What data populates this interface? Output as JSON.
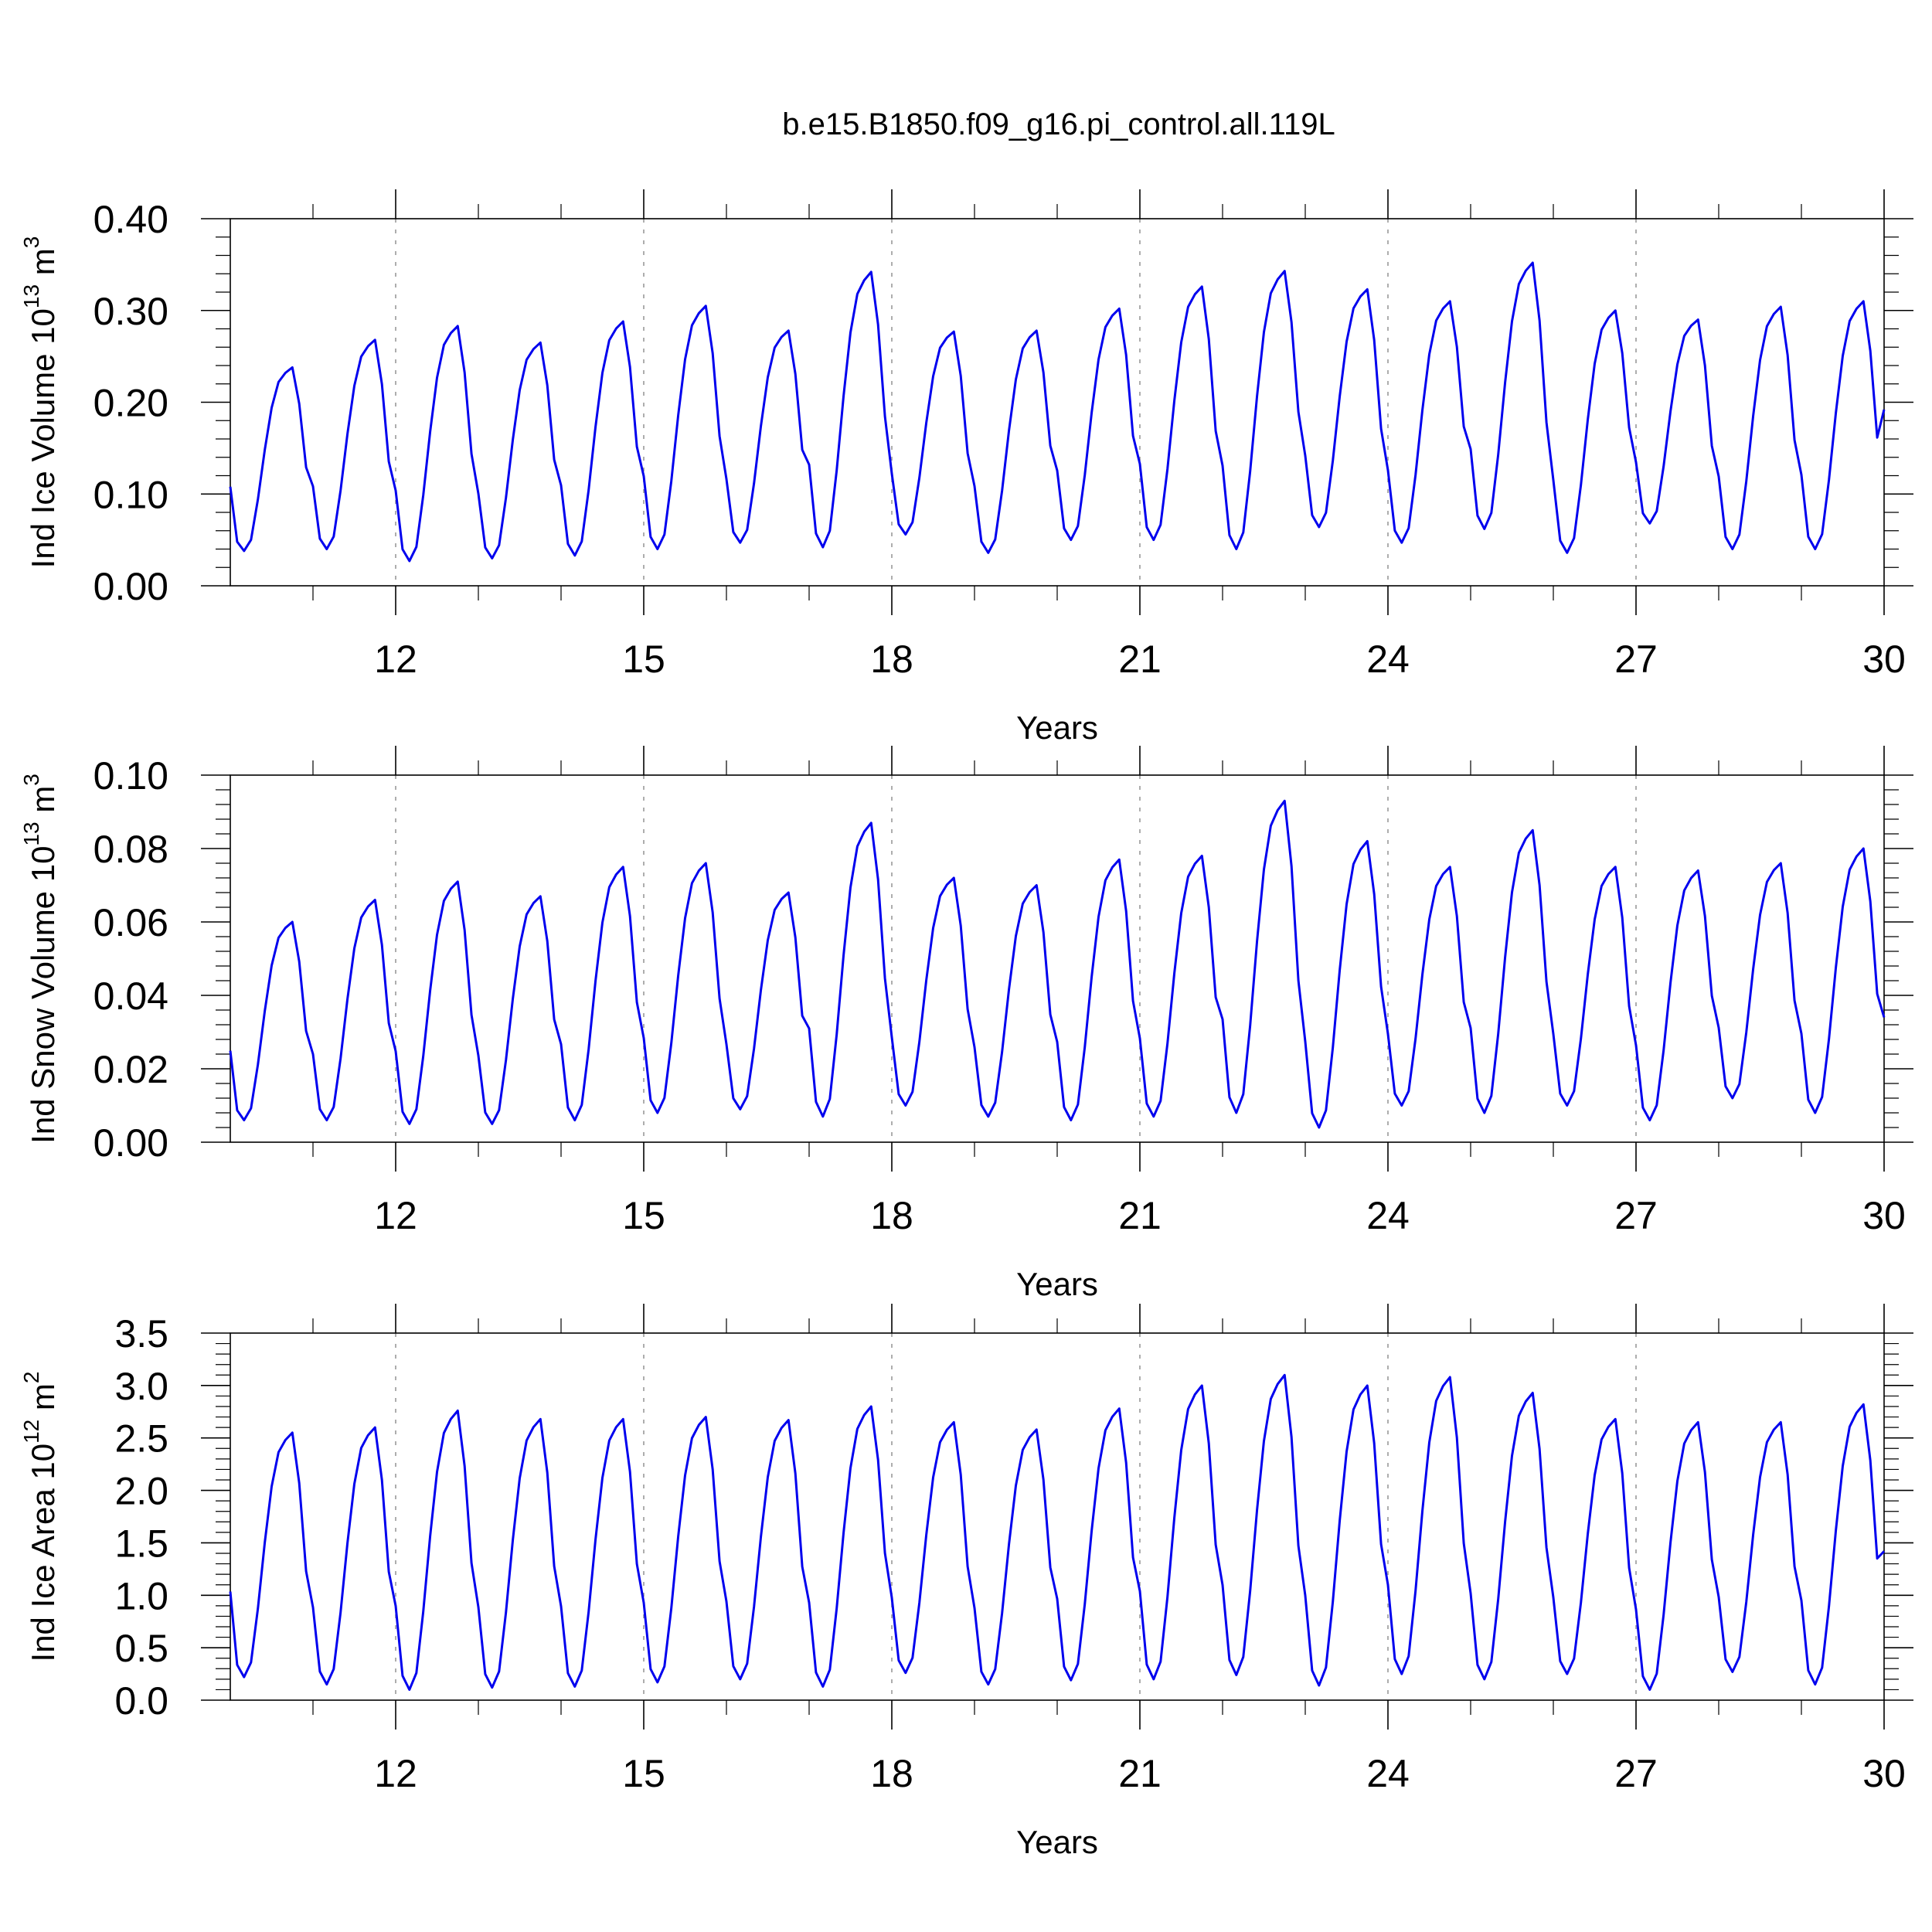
{
  "title": "b.e15.B1850.f09_g16.pi_control.all.119L",
  "colors": {
    "line": "#0000ee",
    "frame": "#000000",
    "grid": "#999999"
  },
  "chart_data": [
    {
      "type": "line",
      "ylabel_main": "Ind Ice Volume 10",
      "ylabel_exp": "13",
      "ylabel_unit": " m",
      "ylabel_unit_exp": "3",
      "xlabel": "Years",
      "xlim": [
        10,
        30
      ],
      "ylim": [
        0,
        0.4
      ],
      "grid": "dashed-vertical",
      "x_ticks": [
        12,
        15,
        18,
        21,
        24,
        27,
        30
      ],
      "x_tick_labels": [
        "12",
        "15",
        "18",
        "21",
        "24",
        "27",
        "30"
      ],
      "y_ticks": [
        0,
        0.1,
        0.2,
        0.3,
        0.4
      ],
      "y_tick_labels": [
        "0.00",
        "0.10",
        "0.20",
        "0.30",
        "0.40"
      ],
      "y_minor_step": 0.02,
      "start_year": 10,
      "samples_per_year": 12,
      "mins": [
        0.038,
        0.04,
        0.027,
        0.03,
        0.033,
        0.04,
        0.047,
        0.042,
        0.056,
        0.036,
        0.05,
        0.05,
        0.04,
        0.064,
        0.047,
        0.062,
        0.036,
        0.068,
        0.04,
        0.04
      ],
      "maxs": [
        0.238,
        0.268,
        0.283,
        0.265,
        0.288,
        0.305,
        0.278,
        0.342,
        0.277,
        0.278,
        0.302,
        0.326,
        0.343,
        0.323,
        0.31,
        0.352,
        0.3,
        0.29,
        0.304,
        0.31
      ],
      "last_value": 0.192
    },
    {
      "type": "line",
      "ylabel_main": "Ind Snow Volume 10",
      "ylabel_exp": "13",
      "ylabel_unit": " m",
      "ylabel_unit_exp": "3",
      "xlabel": "Years",
      "xlim": [
        10,
        30
      ],
      "ylim": [
        0,
        0.1
      ],
      "grid": "dashed-vertical",
      "x_ticks": [
        12,
        15,
        18,
        21,
        24,
        27,
        30
      ],
      "x_tick_labels": [
        "12",
        "15",
        "18",
        "21",
        "24",
        "27",
        "30"
      ],
      "y_ticks": [
        0,
        0.02,
        0.04,
        0.06,
        0.08,
        0.1
      ],
      "y_tick_labels": [
        "0.00",
        "0.02",
        "0.04",
        "0.06",
        "0.08",
        "0.10"
      ],
      "y_minor_step": 0.004,
      "start_year": 10,
      "samples_per_year": 12,
      "mins": [
        0.006,
        0.006,
        0.005,
        0.005,
        0.006,
        0.008,
        0.009,
        0.007,
        0.01,
        0.007,
        0.006,
        0.007,
        0.008,
        0.004,
        0.01,
        0.008,
        0.01,
        0.006,
        0.012,
        0.008
      ],
      "maxs": [
        0.06,
        0.066,
        0.071,
        0.067,
        0.075,
        0.076,
        0.068,
        0.087,
        0.072,
        0.07,
        0.077,
        0.078,
        0.093,
        0.082,
        0.075,
        0.085,
        0.075,
        0.074,
        0.076,
        0.08
      ],
      "last_value": 0.034
    },
    {
      "type": "line",
      "ylabel_main": "Ind Ice Area 10",
      "ylabel_exp": "12",
      "ylabel_unit": " m",
      "ylabel_unit_exp": "2",
      "xlabel": "Years",
      "xlim": [
        10,
        30
      ],
      "ylim": [
        0,
        3.5
      ],
      "grid": "dashed-vertical",
      "x_ticks": [
        12,
        15,
        18,
        21,
        24,
        27,
        30
      ],
      "x_tick_labels": [
        "12",
        "15",
        "18",
        "21",
        "24",
        "27",
        "30"
      ],
      "y_ticks": [
        0,
        0.5,
        1,
        1.5,
        2,
        2.5,
        3,
        3.5
      ],
      "y_tick_labels": [
        "0.0",
        "0.5",
        "1.0",
        "1.5",
        "2.0",
        "2.5",
        "3.0",
        "3.5"
      ],
      "y_minor_step": 0.1,
      "start_year": 10,
      "samples_per_year": 12,
      "mins": [
        0.22,
        0.15,
        0.1,
        0.12,
        0.13,
        0.17,
        0.2,
        0.13,
        0.26,
        0.15,
        0.19,
        0.2,
        0.24,
        0.14,
        0.25,
        0.2,
        0.25,
        0.1,
        0.27,
        0.15
      ],
      "maxs": [
        2.55,
        2.6,
        2.76,
        2.68,
        2.68,
        2.7,
        2.67,
        2.8,
        2.65,
        2.58,
        2.78,
        3.0,
        3.1,
        3.0,
        3.08,
        2.93,
        2.68,
        2.65,
        2.65,
        2.82
      ],
      "last_value": 1.42
    }
  ]
}
